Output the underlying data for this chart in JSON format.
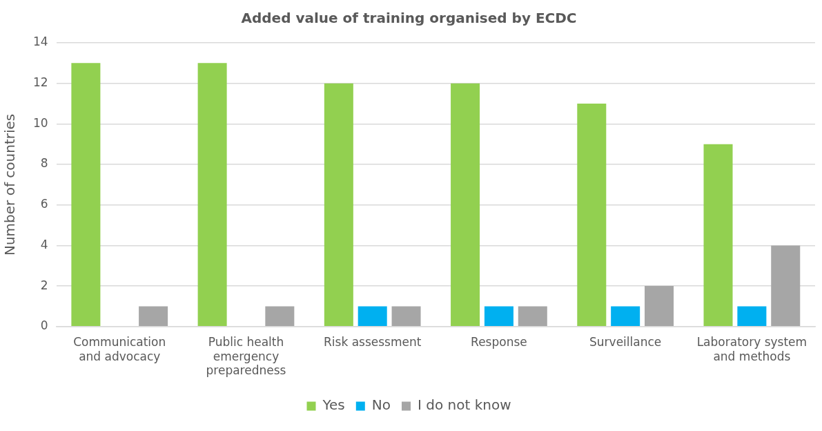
{
  "chart_data": {
    "type": "bar",
    "title": "Added value of training organised by ECDC",
    "ylabel": "Number of countries",
    "categories": [
      "Communication and advocacy",
      "Public health emergency preparedness",
      "Risk assessment",
      "Response",
      "Surveillance",
      "Laboratory system and methods"
    ],
    "series": [
      {
        "name": "Yes",
        "color": "#92d050",
        "values": [
          13,
          13,
          12,
          12,
          11,
          9
        ]
      },
      {
        "name": "No",
        "color": "#00b0f0",
        "values": [
          null,
          null,
          1,
          1,
          1,
          1
        ]
      },
      {
        "name": "I do not know",
        "color": "#a6a6a6",
        "values": [
          1,
          1,
          1,
          1,
          2,
          4
        ]
      }
    ],
    "ylim": [
      0,
      14
    ],
    "yticks": [
      0,
      2,
      4,
      6,
      8,
      10,
      12,
      14
    ],
    "grid": "y",
    "legend": "bottom"
  }
}
